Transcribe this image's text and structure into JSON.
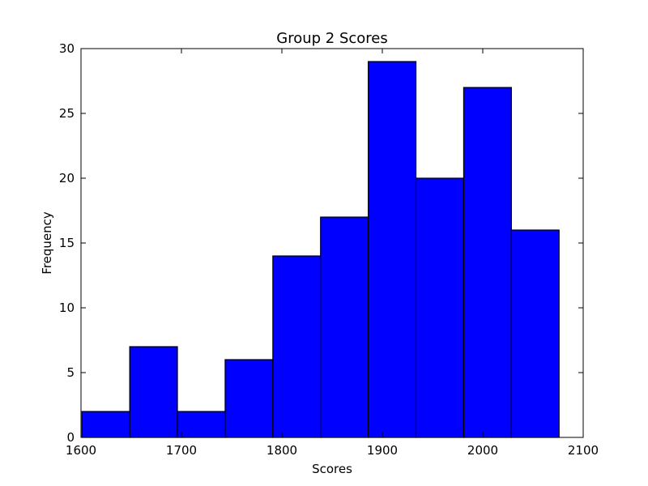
{
  "chart_data": {
    "type": "bar",
    "title": "Group 2 Scores",
    "xlabel": "Scores",
    "ylabel": "Frequency",
    "xlim": [
      1600,
      2100
    ],
    "ylim": [
      0,
      30
    ],
    "x_ticks": [
      "1600",
      "1700",
      "1800",
      "1900",
      "2000",
      "2100"
    ],
    "y_ticks": [
      "0",
      "5",
      "10",
      "15",
      "20",
      "25",
      "30"
    ],
    "bin_edges": [
      1601,
      1648.5,
      1696,
      1743.5,
      1791,
      1838.5,
      1886,
      1933.5,
      1981,
      2028.5,
      2076
    ],
    "values": [
      2,
      7,
      2,
      6,
      14,
      17,
      29,
      20,
      27,
      16
    ],
    "bar_color": "#0000ff",
    "edge_color": "#000000",
    "grid": false,
    "legend": "none"
  }
}
